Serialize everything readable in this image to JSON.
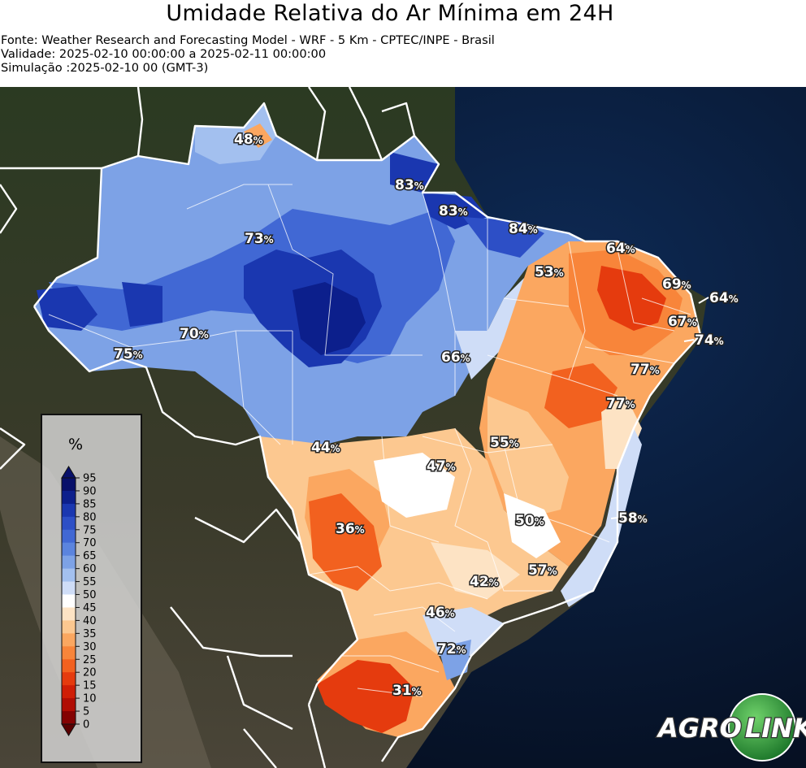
{
  "header": {
    "title": "Umidade Relativa do Ar Mínima em 24H",
    "source": "Fonte: Weather Research and Forecasting Model - WRF - 5 Km - CPTEC/INPE - Brasil",
    "validity": "Validade: 2025-02-10 00:00:00 a 2025-02-11 00:00:00",
    "simulation": "Simulação :2025-02-10 00 (GMT-3)"
  },
  "colorbar": {
    "unit": "%",
    "ticks": [
      "95",
      "90",
      "85",
      "80",
      "75",
      "70",
      "65",
      "60",
      "55",
      "50",
      "45",
      "40",
      "35",
      "30",
      "25",
      "20",
      "15",
      "10",
      "5",
      "0"
    ],
    "colors": [
      "#08106a",
      "#0c1f8c",
      "#1a37b0",
      "#2d4fc6",
      "#4168d4",
      "#5b84de",
      "#7da2e6",
      "#a3c0ef",
      "#cfddf7",
      "#ffffff",
      "#fde3c4",
      "#fcc890",
      "#fba760",
      "#f8853a",
      "#f2611f",
      "#e53b0e",
      "#cf1e06",
      "#b00d04",
      "#840202"
    ]
  },
  "labels": [
    {
      "value": "48",
      "unit": "%"
    },
    {
      "value": "83",
      "unit": "%"
    },
    {
      "value": "83",
      "unit": "%"
    },
    {
      "value": "73",
      "unit": "%"
    },
    {
      "value": "84",
      "unit": "%"
    },
    {
      "value": "64",
      "unit": "%"
    },
    {
      "value": "53",
      "unit": "%"
    },
    {
      "value": "69",
      "unit": "%"
    },
    {
      "value": "64",
      "unit": "%"
    },
    {
      "value": "67",
      "unit": "%"
    },
    {
      "value": "74",
      "unit": "%"
    },
    {
      "value": "70",
      "unit": "%"
    },
    {
      "value": "75",
      "unit": "%"
    },
    {
      "value": "66",
      "unit": "%"
    },
    {
      "value": "77",
      "unit": "%"
    },
    {
      "value": "77",
      "unit": "%"
    },
    {
      "value": "44",
      "unit": "%"
    },
    {
      "value": "55",
      "unit": "%"
    },
    {
      "value": "47",
      "unit": "%"
    },
    {
      "value": "50",
      "unit": "%"
    },
    {
      "value": "58",
      "unit": "%"
    },
    {
      "value": "36",
      "unit": "%"
    },
    {
      "value": "57",
      "unit": "%"
    },
    {
      "value": "42",
      "unit": "%"
    },
    {
      "value": "46",
      "unit": "%"
    },
    {
      "value": "72",
      "unit": "%"
    },
    {
      "value": "31",
      "unit": "%"
    }
  ],
  "logo": {
    "part1": "AGRO",
    "part2": "LINK"
  },
  "colors": {
    "ocean": "#0a1a33",
    "land": "#2e3a24",
    "borders": "#ffffff",
    "logo_green": "#2f9e3e"
  }
}
